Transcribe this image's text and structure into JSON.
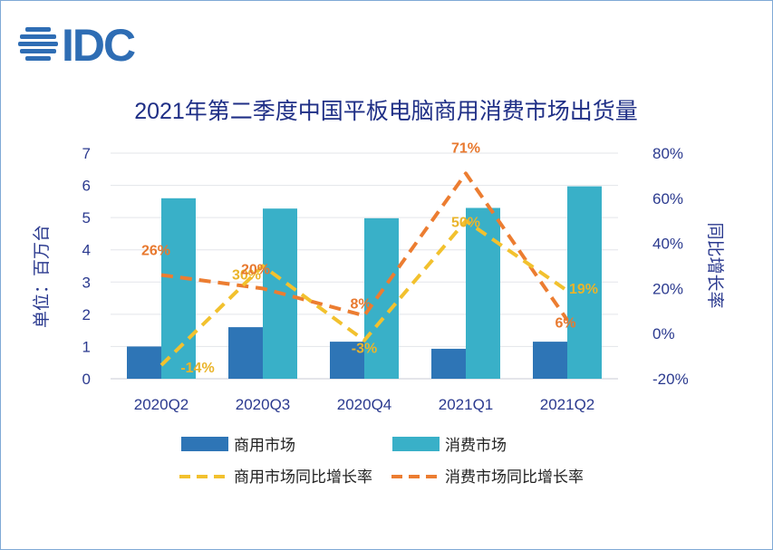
{
  "logo": {
    "text": "IDC"
  },
  "chart_data": {
    "type": "bar",
    "title": "2021年第二季度中国平板电脑商用消费市场出货量",
    "categories": [
      "2020Q2",
      "2020Q3",
      "2020Q4",
      "2021Q1",
      "2021Q2"
    ],
    "ylabel": "单位：百万台",
    "y2label": "同比增长率",
    "ylim": [
      0,
      7
    ],
    "y2lim": [
      -20,
      80
    ],
    "y_ticks": [
      "0",
      "1",
      "2",
      "3",
      "4",
      "5",
      "6",
      "7"
    ],
    "y2_ticks": [
      "-20%",
      "0%",
      "20%",
      "40%",
      "60%",
      "80%"
    ],
    "series": [
      {
        "name": "商用市场",
        "kind": "bar",
        "color": "#2e75b6",
        "values": [
          1.0,
          1.6,
          1.15,
          0.93,
          1.15
        ]
      },
      {
        "name": "消费市场",
        "kind": "bar",
        "color": "#39b0c8",
        "values": [
          5.6,
          5.28,
          4.98,
          5.3,
          5.97
        ]
      },
      {
        "name": "商用市场同比增长率",
        "kind": "line",
        "axis": "y2",
        "color": "#f2c12e",
        "label_color": "#eab42a",
        "values": [
          -14,
          30,
          -3,
          50,
          19
        ],
        "labels": [
          "-14%",
          "30%",
          "-3%",
          "50%",
          "19%"
        ]
      },
      {
        "name": "消费市场同比增长率",
        "kind": "line",
        "axis": "y2",
        "color": "#ec7d31",
        "label_color": "#e8792f",
        "values": [
          26,
          20,
          8,
          71,
          6
        ],
        "labels": [
          "26%",
          "20%",
          "8%",
          "71%",
          "6%"
        ]
      }
    ]
  }
}
